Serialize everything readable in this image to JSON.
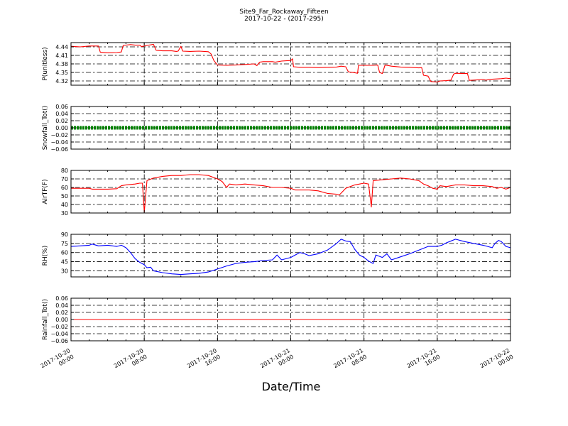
{
  "chart_data": {
    "title": "Site9_Far_Rockaway_Fifteen",
    "subtitle": "2017-10-22 - (2017-295)",
    "xlabel": "Date/Time",
    "x_ticks": [
      {
        "line1": "2017-10-20",
        "line2": "00:00"
      },
      {
        "line1": "2017-10-20",
        "line2": "08:00"
      },
      {
        "line1": "2017-10-20",
        "line2": "16:00"
      },
      {
        "line1": "2017-10-21",
        "line2": "00:00"
      },
      {
        "line1": "2017-10-21",
        "line2": "08:00"
      },
      {
        "line1": "2017-10-21",
        "line2": "16:00"
      },
      {
        "line1": "2017-10-22",
        "line2": "00:00"
      }
    ],
    "x_range_hours": [
      0,
      48
    ],
    "grid": true,
    "panels": [
      {
        "type": "line",
        "ylabel": "P(unitless)",
        "ylim": [
          4.305,
          4.455
        ],
        "yticks": [
          "4.44",
          "4.41",
          "4.38",
          "4.35",
          "4.32"
        ],
        "ytick_values": [
          4.44,
          4.41,
          4.38,
          4.35,
          4.32
        ],
        "color": "#ff0000",
        "points": [
          [
            0,
            4.442
          ],
          [
            1,
            4.44
          ],
          [
            2,
            4.443
          ],
          [
            3,
            4.443
          ],
          [
            3.2,
            4.421
          ],
          [
            4,
            4.419
          ],
          [
            5,
            4.42
          ],
          [
            5.5,
            4.422
          ],
          [
            5.7,
            4.445
          ],
          [
            6.5,
            4.448
          ],
          [
            7,
            4.446
          ],
          [
            7.5,
            4.446
          ],
          [
            7.7,
            4.441
          ],
          [
            8.3,
            4.445
          ],
          [
            9,
            4.449
          ],
          [
            9.3,
            4.428
          ],
          [
            10,
            4.426
          ],
          [
            11,
            4.426
          ],
          [
            11.5,
            4.424
          ],
          [
            11.7,
            4.425
          ],
          [
            12,
            4.442
          ],
          [
            12.2,
            4.425
          ],
          [
            13,
            4.424
          ],
          [
            14,
            4.425
          ],
          [
            15,
            4.423
          ],
          [
            15.3,
            4.415
          ],
          [
            15.6,
            4.392
          ],
          [
            16,
            4.376
          ],
          [
            17,
            4.375
          ],
          [
            18,
            4.376
          ],
          [
            19,
            4.378
          ],
          [
            20,
            4.38
          ],
          [
            20.3,
            4.374
          ],
          [
            20.6,
            4.386
          ],
          [
            21,
            4.388
          ],
          [
            22,
            4.388
          ],
          [
            22.3,
            4.386
          ],
          [
            23,
            4.39
          ],
          [
            24,
            4.392
          ],
          [
            24.2,
            4.398
          ],
          [
            24.3,
            4.37
          ],
          [
            25,
            4.368
          ],
          [
            26,
            4.368
          ],
          [
            27,
            4.367
          ],
          [
            28,
            4.368
          ],
          [
            29,
            4.369
          ],
          [
            29.5,
            4.372
          ],
          [
            30,
            4.37
          ],
          [
            30.3,
            4.352
          ],
          [
            31,
            4.349
          ],
          [
            31.3,
            4.347
          ],
          [
            31.4,
            4.375
          ],
          [
            32,
            4.375
          ],
          [
            33,
            4.375
          ],
          [
            33.5,
            4.376
          ],
          [
            33.7,
            4.35
          ],
          [
            34,
            4.346
          ],
          [
            34.3,
            4.376
          ],
          [
            35,
            4.372
          ],
          [
            36,
            4.369
          ],
          [
            37,
            4.368
          ],
          [
            38,
            4.366
          ],
          [
            38.3,
            4.367
          ],
          [
            38.5,
            4.34
          ],
          [
            39,
            4.337
          ],
          [
            39.3,
            4.318
          ],
          [
            40,
            4.316
          ],
          [
            40.3,
            4.32
          ],
          [
            41,
            4.321
          ],
          [
            41.5,
            4.323
          ],
          [
            41.8,
            4.344
          ],
          [
            42,
            4.347
          ],
          [
            43,
            4.346
          ],
          [
            43.3,
            4.346
          ],
          [
            43.5,
            4.322
          ],
          [
            44,
            4.323
          ],
          [
            45,
            4.325
          ],
          [
            45.3,
            4.323
          ],
          [
            46,
            4.326
          ],
          [
            47,
            4.328
          ],
          [
            47.5,
            4.33
          ],
          [
            48,
            4.328
          ]
        ]
      },
      {
        "type": "line",
        "ylabel": "Snowfall_Tot()",
        "ylim": [
          -0.06,
          0.06
        ],
        "yticks": [
          "0.06",
          "0.04",
          "0.02",
          "0.00",
          "−0.02",
          "−0.04",
          "−0.06"
        ],
        "ytick_values": [
          0.06,
          0.04,
          0.02,
          0.0,
          -0.02,
          -0.04,
          -0.06
        ],
        "color": "#008000",
        "markers": true,
        "points": [
          [
            0,
            0
          ],
          [
            48,
            0
          ]
        ]
      },
      {
        "type": "line",
        "ylabel": "AirTF(F)",
        "ylim": [
          30,
          80
        ],
        "yticks": [
          "80",
          "70",
          "60",
          "50",
          "40",
          "30"
        ],
        "ytick_values": [
          80,
          70,
          60,
          50,
          40,
          30
        ],
        "color": "#ff0000",
        "points": [
          [
            0,
            59
          ],
          [
            1,
            59
          ],
          [
            2,
            59
          ],
          [
            2.3,
            58
          ],
          [
            3,
            58
          ],
          [
            4,
            58
          ],
          [
            5,
            58.5
          ],
          [
            5.5,
            62
          ],
          [
            6,
            63
          ],
          [
            7,
            64
          ],
          [
            7.5,
            65
          ],
          [
            7.8,
            65
          ],
          [
            8,
            31
          ],
          [
            8.3,
            68
          ],
          [
            9,
            71
          ],
          [
            10,
            73
          ],
          [
            11,
            74
          ],
          [
            12,
            74
          ],
          [
            13,
            75
          ],
          [
            14,
            75
          ],
          [
            15,
            74
          ],
          [
            16,
            70
          ],
          [
            16.5,
            67
          ],
          [
            17,
            60
          ],
          [
            17.3,
            64
          ],
          [
            18,
            63
          ],
          [
            19,
            64
          ],
          [
            20,
            63
          ],
          [
            21,
            62
          ],
          [
            22,
            60
          ],
          [
            23,
            60
          ],
          [
            24,
            59
          ],
          [
            24.5,
            57
          ],
          [
            25,
            57
          ],
          [
            26,
            57
          ],
          [
            27,
            56
          ],
          [
            28,
            53
          ],
          [
            29,
            52
          ],
          [
            29.3,
            51
          ],
          [
            30,
            59
          ],
          [
            31,
            63
          ],
          [
            32,
            65
          ],
          [
            32.5,
            64
          ],
          [
            32.8,
            37
          ],
          [
            33,
            68
          ],
          [
            34,
            69
          ],
          [
            35,
            70
          ],
          [
            36,
            71
          ],
          [
            37,
            70
          ],
          [
            38,
            68
          ],
          [
            38.5,
            64
          ],
          [
            39,
            62
          ],
          [
            39.5,
            59
          ],
          [
            40,
            58
          ],
          [
            40.3,
            62
          ],
          [
            41,
            61
          ],
          [
            42,
            63
          ],
          [
            43,
            63
          ],
          [
            44,
            62
          ],
          [
            45,
            62
          ],
          [
            46,
            61
          ],
          [
            46.5,
            59
          ],
          [
            47,
            60
          ],
          [
            47.5,
            58
          ],
          [
            48,
            60
          ]
        ]
      },
      {
        "type": "line",
        "ylabel": "RH(%)",
        "ylim": [
          20,
          90
        ],
        "yticks": [
          "90",
          "75",
          "60",
          "45",
          "30"
        ],
        "ytick_values": [
          90,
          75,
          60,
          45,
          30
        ],
        "color": "#0000ff",
        "points": [
          [
            0,
            70
          ],
          [
            1,
            71
          ],
          [
            2,
            72
          ],
          [
            2.3,
            74
          ],
          [
            3,
            71
          ],
          [
            4,
            72
          ],
          [
            5,
            70
          ],
          [
            5.5,
            72
          ],
          [
            6,
            68
          ],
          [
            6.5,
            60
          ],
          [
            7,
            50
          ],
          [
            7.5,
            44
          ],
          [
            8,
            40
          ],
          [
            8.3,
            35
          ],
          [
            8.7,
            36
          ],
          [
            9,
            30
          ],
          [
            10,
            27
          ],
          [
            11,
            25
          ],
          [
            12,
            24
          ],
          [
            13,
            25
          ],
          [
            14,
            26
          ],
          [
            15,
            28
          ],
          [
            16,
            33
          ],
          [
            17,
            38
          ],
          [
            18,
            42
          ],
          [
            19,
            44
          ],
          [
            20,
            45
          ],
          [
            21,
            47
          ],
          [
            22,
            48
          ],
          [
            22.5,
            56
          ],
          [
            23,
            48
          ],
          [
            24,
            52
          ],
          [
            24.5,
            56
          ],
          [
            25,
            60
          ],
          [
            25.5,
            58
          ],
          [
            26,
            55
          ],
          [
            27,
            58
          ],
          [
            28,
            64
          ],
          [
            29,
            75
          ],
          [
            29.5,
            82
          ],
          [
            30,
            79
          ],
          [
            30.5,
            78
          ],
          [
            31,
            65
          ],
          [
            31.5,
            56
          ],
          [
            32,
            52
          ],
          [
            32.5,
            46
          ],
          [
            33,
            42
          ],
          [
            33.3,
            56
          ],
          [
            34,
            52
          ],
          [
            34.5,
            58
          ],
          [
            35,
            48
          ],
          [
            36,
            53
          ],
          [
            37,
            58
          ],
          [
            38,
            64
          ],
          [
            39,
            70
          ],
          [
            40,
            70
          ],
          [
            40.5,
            72
          ],
          [
            41,
            76
          ],
          [
            42,
            82
          ],
          [
            43,
            78
          ],
          [
            44,
            75
          ],
          [
            45,
            72
          ],
          [
            46,
            68
          ],
          [
            46.3,
            75
          ],
          [
            46.7,
            80
          ],
          [
            47,
            78
          ],
          [
            47.5,
            70
          ],
          [
            48,
            68
          ]
        ]
      },
      {
        "type": "line",
        "ylabel": "Rainfall_Tot()",
        "ylim": [
          -0.06,
          0.06
        ],
        "yticks": [
          "0.06",
          "0.04",
          "0.02",
          "0.00",
          "−0.02",
          "−0.04",
          "−0.06"
        ],
        "ytick_values": [
          0.06,
          0.04,
          0.02,
          0.0,
          -0.02,
          -0.04,
          -0.06
        ],
        "color": "#ff0000",
        "points": [
          [
            0,
            0
          ],
          [
            48,
            0
          ]
        ]
      }
    ]
  }
}
